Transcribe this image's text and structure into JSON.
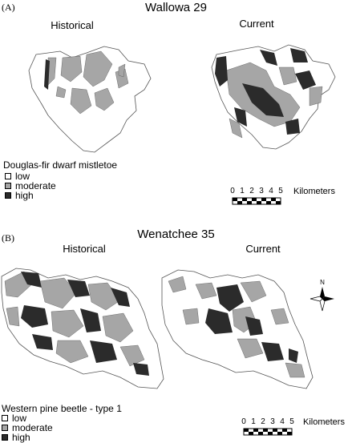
{
  "colors": {
    "low": "#ffffff",
    "moderate": "#a6a6a6",
    "high": "#2b2b2b",
    "outline": "#555555"
  },
  "panel_a": {
    "letter": "(A)",
    "title": "Wallowa 29",
    "left_map_label": "Historical",
    "right_map_label": "Current",
    "legend": {
      "title": "Douglas-fir dwarf mistletoe",
      "items": [
        {
          "label": "low",
          "class": "low"
        },
        {
          "label": "moderate",
          "class": "moderate"
        },
        {
          "label": "high",
          "class": "high"
        }
      ]
    },
    "scale": {
      "ticks": [
        "0",
        "1",
        "2",
        "3",
        "4",
        "5"
      ],
      "unit": "Kilometers"
    }
  },
  "panel_b": {
    "letter": "(B)",
    "title": "Wenatchee 35",
    "left_map_label": "Historical",
    "right_map_label": "Current",
    "north_label": "N",
    "legend": {
      "title": "Western pine beetle - type 1",
      "items": [
        {
          "label": "low",
          "class": "low"
        },
        {
          "label": "moderate",
          "class": "moderate"
        },
        {
          "label": "high",
          "class": "high"
        }
      ]
    },
    "scale": {
      "ticks": [
        "0",
        "1",
        "2",
        "3",
        "4",
        "5"
      ],
      "unit": "Kilometers"
    }
  }
}
